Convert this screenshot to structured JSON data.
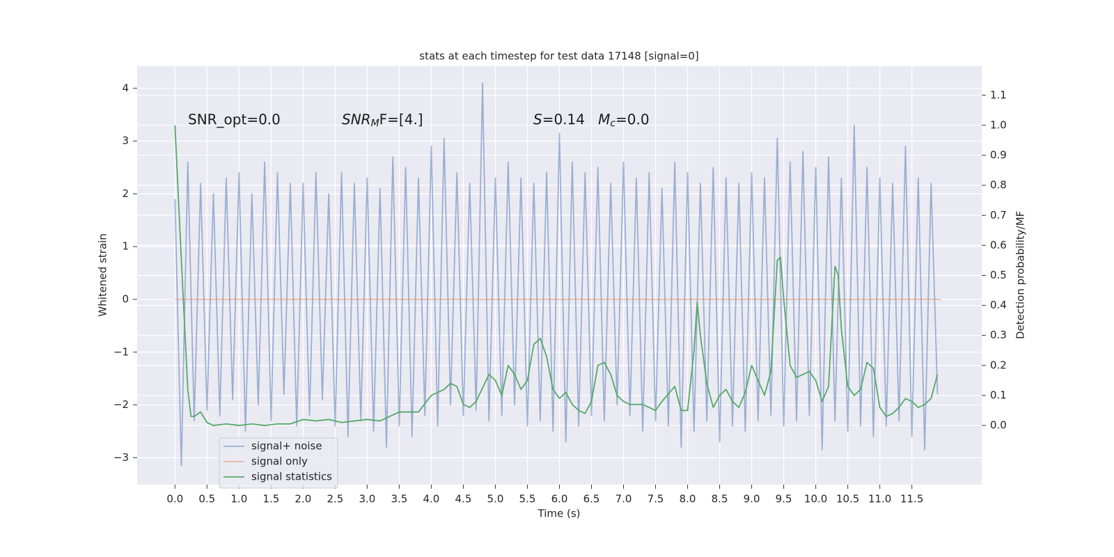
{
  "chart_data": {
    "type": "line",
    "title": "stats at each timestep for test data 17148 [signal=0]",
    "xlabel": "Time (s)",
    "ylabel": "Whitened strain",
    "y2label": "Detection probability/MF",
    "xlim": [
      -0.59,
      12.59
    ],
    "ylim": [
      -3.51,
      4.42
    ],
    "y2lim": [
      -0.197,
      1.197
    ],
    "xticks": [
      {
        "value": 0,
        "label": "0.0"
      },
      0.5,
      {
        "value": 1,
        "label": "1.0"
      },
      1.5,
      {
        "value": 2,
        "label": "2.0"
      },
      2.5,
      {
        "value": 3,
        "label": "3.0"
      },
      3.5,
      {
        "value": 4,
        "label": "4.0"
      },
      4.5,
      {
        "value": 5,
        "label": "5.0"
      },
      5.5,
      {
        "value": 6,
        "label": "6.0"
      },
      6.5,
      {
        "value": 7,
        "label": "7.0"
      },
      7.5,
      {
        "value": 8,
        "label": "8.0"
      },
      8.5,
      {
        "value": 9,
        "label": "9.0"
      },
      9.5,
      {
        "value": 10,
        "label": "10.0"
      },
      10.5,
      {
        "value": 11,
        "label": "11.0"
      },
      11.5
    ],
    "yticks": [
      {
        "value": -3,
        "label": "−3"
      },
      {
        "value": -2,
        "label": "−2"
      },
      {
        "value": -1,
        "label": "−1"
      },
      0,
      1,
      2,
      3,
      4
    ],
    "y2ticks": [
      {
        "value": 0,
        "label": "0.0"
      },
      0.1,
      0.2,
      0.3,
      0.4,
      0.5,
      0.6,
      0.7,
      0.8,
      0.9,
      {
        "value": 1,
        "label": "1.0"
      },
      1.1
    ],
    "grid": true,
    "legend_loc": "lower left",
    "annotations": [
      [
        {
          "text": "SNR_opt=0.0"
        }
      ],
      [
        {
          "text": "SNR",
          "italic": true
        },
        {
          "text": "M",
          "italic": true,
          "sub": true
        },
        {
          "text": "F=[4.]",
          "italic": false
        }
      ],
      [
        {
          "text": "S",
          "italic": true
        },
        {
          "text": "=0.14   "
        },
        {
          "text": "M",
          "italic": true
        },
        {
          "text": "c",
          "italic": true,
          "sub": true
        },
        {
          "text": "=0.0"
        }
      ]
    ],
    "series": [
      {
        "name": "signal+ noise",
        "color": "#4c72b0",
        "opacity": 0.5,
        "axis": "y",
        "x": [
          0,
          0.1,
          0.2,
          0.3,
          0.4,
          0.5,
          0.6,
          0.7,
          0.8,
          0.9,
          1,
          1.1,
          1.2,
          1.3,
          1.4,
          1.5,
          1.6,
          1.7,
          1.8,
          1.9,
          2,
          2.1,
          2.2,
          2.3,
          2.4,
          2.5,
          2.6,
          2.7,
          2.8,
          2.9,
          3,
          3.1,
          3.2,
          3.3,
          3.4,
          3.5,
          3.6,
          3.7,
          3.8,
          3.9,
          4,
          4.1,
          4.2,
          4.3,
          4.4,
          4.5,
          4.6,
          4.7,
          4.8,
          4.9,
          5,
          5.1,
          5.2,
          5.3,
          5.4,
          5.5,
          5.6,
          5.7,
          5.8,
          5.9,
          6,
          6.1,
          6.2,
          6.3,
          6.4,
          6.5,
          6.6,
          6.7,
          6.8,
          6.9,
          7,
          7.1,
          7.2,
          7.3,
          7.4,
          7.5,
          7.6,
          7.7,
          7.8,
          7.9,
          8,
          8.1,
          8.2,
          8.3,
          8.4,
          8.5,
          8.6,
          8.7,
          8.8,
          8.9,
          9,
          9.1,
          9.2,
          9.3,
          9.4,
          9.5,
          9.6,
          9.7,
          9.8,
          9.9,
          10,
          10.1,
          10.2,
          10.3,
          10.4,
          10.5,
          10.6,
          10.7,
          10.8,
          10.9,
          11,
          11.1,
          11.2,
          11.3,
          11.4,
          11.5,
          11.6,
          11.7,
          11.8,
          11.9
        ],
        "values": [
          1.9,
          -3.15,
          2.6,
          -2.3,
          2.2,
          -2.1,
          2.0,
          -2.2,
          2.3,
          -1.9,
          2.4,
          -2.5,
          2.0,
          -2.0,
          2.6,
          -2.3,
          2.4,
          -1.8,
          2.2,
          -2.4,
          2.2,
          -2.2,
          2.4,
          -1.9,
          2.0,
          -2.4,
          2.4,
          -2.6,
          2.2,
          -2.3,
          2.3,
          -2.5,
          2.1,
          -2.8,
          2.7,
          -2.4,
          2.5,
          -2.6,
          2.3,
          -2.2,
          2.9,
          -2.4,
          3.05,
          -2.0,
          2.4,
          -2.2,
          2.2,
          -2.1,
          4.1,
          -2.3,
          2.3,
          -2.2,
          2.6,
          -2.0,
          2.3,
          -2.4,
          2.2,
          -2.3,
          2.4,
          -2.5,
          3.15,
          -2.7,
          2.6,
          -2.4,
          2.4,
          -2.2,
          2.5,
          -2.3,
          2.2,
          -2.0,
          2.6,
          -2.2,
          2.3,
          -2.5,
          2.4,
          -2.3,
          2.1,
          -2.4,
          2.6,
          -2.8,
          2.4,
          -2.5,
          2.2,
          -2.3,
          2.5,
          -2.7,
          2.3,
          -2.4,
          2.2,
          -2.5,
          2.4,
          -2.3,
          2.3,
          -2.2,
          3.05,
          -2.4,
          2.6,
          -2.3,
          2.8,
          -2.2,
          2.5,
          -2.85,
          2.7,
          -2.3,
          2.3,
          -2.5,
          3.3,
          -2.4,
          2.5,
          -2.6,
          2.3,
          -2.4,
          2.2,
          -2.3,
          2.9,
          -2.6,
          2.3,
          -2.85,
          2.2,
          -1.8
        ]
      },
      {
        "name": "signal only",
        "color": "#dd8452",
        "opacity": 0.5,
        "axis": "y",
        "x": [
          0,
          11.95
        ],
        "values": [
          0,
          0
        ]
      },
      {
        "name": "signal statistics",
        "color": "#55a868",
        "opacity": 1,
        "axis": "y2",
        "x": [
          0,
          0.1,
          0.2,
          0.25,
          0.3,
          0.4,
          0.5,
          0.6,
          0.8,
          1.0,
          1.2,
          1.4,
          1.6,
          1.8,
          2.0,
          2.2,
          2.4,
          2.6,
          2.8,
          3.0,
          3.2,
          3.5,
          3.8,
          4.0,
          4.2,
          4.3,
          4.4,
          4.5,
          4.6,
          4.7,
          4.9,
          5.0,
          5.1,
          5.2,
          5.3,
          5.4,
          5.5,
          5.6,
          5.7,
          5.8,
          5.9,
          6.0,
          6.1,
          6.2,
          6.3,
          6.4,
          6.5,
          6.6,
          6.7,
          6.8,
          6.9,
          7.0,
          7.1,
          7.3,
          7.5,
          7.6,
          7.8,
          7.9,
          8.0,
          8.1,
          8.15,
          8.2,
          8.3,
          8.4,
          8.5,
          8.6,
          8.7,
          8.8,
          8.9,
          9.0,
          9.1,
          9.2,
          9.3,
          9.4,
          9.45,
          9.5,
          9.6,
          9.7,
          9.8,
          9.9,
          10.0,
          10.1,
          10.2,
          10.3,
          10.35,
          10.4,
          10.5,
          10.6,
          10.7,
          10.8,
          10.9,
          11.0,
          11.1,
          11.2,
          11.3,
          11.4,
          11.5,
          11.6,
          11.7,
          11.8,
          11.9
        ],
        "values": [
          1.0,
          0.55,
          0.12,
          0.03,
          0.03,
          0.045,
          0.01,
          0.0,
          0.005,
          0.0,
          0.005,
          0.0,
          0.005,
          0.005,
          0.02,
          0.015,
          0.02,
          0.01,
          0.015,
          0.02,
          0.015,
          0.045,
          0.045,
          0.1,
          0.12,
          0.14,
          0.13,
          0.07,
          0.06,
          0.08,
          0.17,
          0.15,
          0.1,
          0.2,
          0.17,
          0.12,
          0.15,
          0.27,
          0.29,
          0.23,
          0.12,
          0.09,
          0.11,
          0.07,
          0.05,
          0.04,
          0.08,
          0.2,
          0.21,
          0.17,
          0.1,
          0.08,
          0.07,
          0.07,
          0.05,
          0.08,
          0.13,
          0.05,
          0.05,
          0.25,
          0.41,
          0.3,
          0.14,
          0.06,
          0.1,
          0.12,
          0.08,
          0.06,
          0.11,
          0.2,
          0.15,
          0.1,
          0.18,
          0.55,
          0.56,
          0.42,
          0.2,
          0.16,
          0.17,
          0.18,
          0.15,
          0.08,
          0.13,
          0.53,
          0.5,
          0.32,
          0.13,
          0.1,
          0.12,
          0.21,
          0.19,
          0.06,
          0.03,
          0.04,
          0.06,
          0.09,
          0.08,
          0.06,
          0.07,
          0.09,
          0.17
        ]
      }
    ]
  }
}
